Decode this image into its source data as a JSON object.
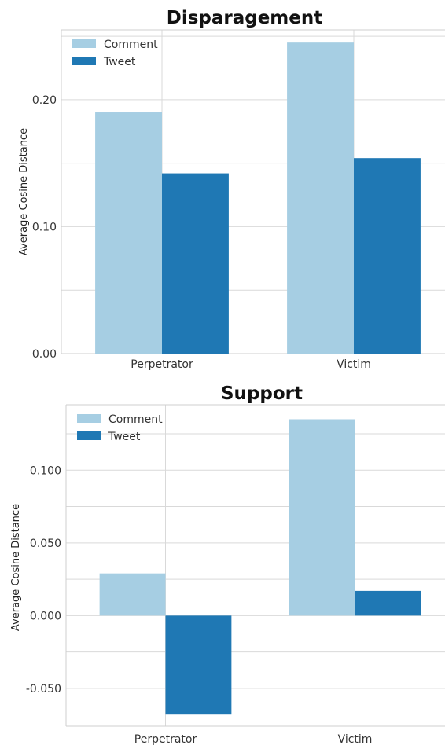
{
  "chart_data": [
    {
      "type": "bar",
      "title": "Disparagement",
      "xlabel": "",
      "ylabel": "Average Cosine Distance",
      "categories": [
        "Perpetrator",
        "Victim"
      ],
      "series": [
        {
          "name": "Comment",
          "values": [
            0.19,
            0.245
          ],
          "color": "#a6cee3"
        },
        {
          "name": "Tweet",
          "values": [
            0.142,
            0.154
          ],
          "color": "#1f78b4"
        }
      ],
      "ylim": [
        0,
        0.255
      ],
      "yticks": [
        0.0,
        0.1,
        0.2
      ],
      "ytick_labels": [
        "0.00",
        "0.10",
        "0.20"
      ],
      "minor_gridlines": [
        0.05,
        0.15,
        0.25
      ],
      "grid": true,
      "legend": "top-left"
    },
    {
      "type": "bar",
      "title": "Support",
      "xlabel": "",
      "ylabel": "Average Cosine Distance",
      "categories": [
        "Perpetrator",
        "Victim"
      ],
      "series": [
        {
          "name": "Comment",
          "values": [
            0.029,
            0.135
          ],
          "color": "#a6cee3"
        },
        {
          "name": "Tweet",
          "values": [
            -0.068,
            0.017
          ],
          "color": "#1f78b4"
        }
      ],
      "ylim": [
        -0.076,
        0.145
      ],
      "yticks": [
        -0.05,
        0.0,
        0.05,
        0.1
      ],
      "ytick_labels": [
        "-0.050",
        "0.000",
        "0.050",
        "0.100"
      ],
      "minor_gridlines": [
        -0.025,
        0.025,
        0.075,
        0.125
      ],
      "grid": true,
      "legend": "top-left"
    }
  ]
}
